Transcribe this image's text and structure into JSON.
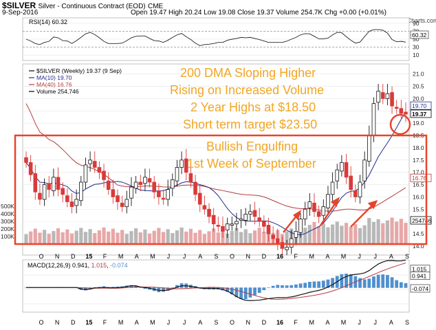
{
  "header": {
    "symbol": "$SILVER",
    "name": "Silver - Continuous Contract (EOD)",
    "exchange": "CME",
    "date": "9-Sep-2016",
    "ohlc": "Open 19.47  High 20.24  Low 19.08  Close 19.37  Volume 254.7K  Chg +0.00 (+0.01%)",
    "watermark": "© StockCharts.com"
  },
  "rsi_panel": {
    "label": "RSI(14) 60.32",
    "ticks": [
      "90",
      "70",
      "50",
      "30",
      "10"
    ],
    "current_label": "60.32"
  },
  "price_panel": {
    "legend": [
      {
        "text": "$SILVER (Weekly) 19.37 (9 Sep)",
        "color": "#000000"
      },
      {
        "text": "MA(10) 19.70",
        "color": "#1f2a8c"
      },
      {
        "text": "MA(40) 16.76",
        "color": "#b53a3a"
      },
      {
        "text": "Volume 254,746",
        "color": "#000000"
      }
    ],
    "price_ticks": [
      "21.0",
      "20.5",
      "20.0",
      "19.5",
      "19.0",
      "18.5",
      "18.0",
      "17.5",
      "17.0",
      "16.5",
      "16.0",
      "15.5",
      "15.0",
      "14.5",
      "14.0"
    ],
    "price_tags": [
      {
        "text": "19.70",
        "bg": "#ffffff",
        "fg": "#1f2a8c"
      },
      {
        "text": "19.37",
        "bg": "#ffffff",
        "fg": "#000000"
      },
      {
        "text": "16.76",
        "bg": "#ffffff",
        "fg": "#b53a3a"
      },
      {
        "text": "254746",
        "bg": "#ffffff",
        "fg": "#000000"
      }
    ],
    "volume_ticks": [
      "500K",
      "400K",
      "300K",
      "200K",
      "100K"
    ]
  },
  "annotations": [
    "200 DMA Sloping Higher",
    "Rising on Increased Volume",
    "2 Year Highs at $18.50",
    "Short term target $23.50",
    "Bullish Engulfing",
    "1st Week of September"
  ],
  "macd_panel": {
    "label_prefix": "MACD(12,26,9)",
    "macd": "0.941",
    "signal": "1.015",
    "hist": "-0.074",
    "tags": [
      "1.015",
      "0.941",
      "-0.074"
    ]
  },
  "x_axis_labels": [
    "O",
    "N",
    "D",
    "15",
    "F",
    "M",
    "A",
    "M",
    "J",
    "J",
    "A",
    "S",
    "O",
    "N",
    "D",
    "16",
    "F",
    "M",
    "A",
    "M",
    "J",
    "J",
    "A",
    "S"
  ],
  "colors": {
    "up": "#111111",
    "down": "#d93a3a",
    "ma10": "#1f2a8c",
    "ma40": "#b53a3a",
    "annotation": "#f2a623",
    "highlight": "#e8442b",
    "volume_up": "#b8b8b8",
    "volume_down": "#e8a7a7",
    "macd_hist": "#4f8fce"
  },
  "chart_data": [
    {
      "type": "candlestick",
      "title": "$SILVER (Weekly)",
      "x_unit": "week",
      "x_range": [
        "2014-10",
        "2016-09"
      ],
      "ylim": [
        13.8,
        21.3
      ],
      "series": [
        {
          "name": "$SILVER (Weekly)",
          "close_path_approx": [
            17.4,
            16.9,
            16.2,
            15.9,
            16.5,
            16.3,
            16.8,
            16.3,
            16.1,
            15.8,
            15.6,
            15.9,
            16.6,
            17.3,
            17.5,
            17.2,
            17.0,
            16.7,
            16.3,
            16.0,
            15.8,
            15.6,
            15.9,
            16.4,
            16.6,
            16.5,
            16.8,
            16.6,
            16.2,
            16.0,
            15.9,
            16.3,
            16.7,
            17.2,
            17.5,
            17.0,
            16.6,
            16.1,
            15.7,
            15.5,
            15.2,
            14.9,
            14.8,
            14.6,
            14.9,
            14.9,
            15.0,
            15.1,
            15.3,
            15.4,
            15.2,
            15.0,
            14.8,
            14.5,
            14.3,
            14.1,
            13.9,
            13.95,
            14.3,
            14.6,
            15.1,
            15.5,
            15.8,
            15.4,
            15.2,
            15.6,
            16.1,
            16.6,
            17.1,
            17.4,
            16.8,
            16.3,
            16.0,
            16.6,
            17.5,
            18.5,
            19.8,
            20.3,
            20.0,
            20.2,
            19.7,
            19.6,
            19.4,
            19.37
          ]
        },
        {
          "name": "MA(10)",
          "last": 19.7
        },
        {
          "name": "MA(40)",
          "last": 16.76
        }
      ],
      "volume_last": 254746
    },
    {
      "type": "line",
      "title": "RSI(14)",
      "ylim": [
        0,
        100
      ],
      "series": [
        {
          "name": "RSI(14)",
          "last": 60.32
        }
      ]
    },
    {
      "type": "line",
      "title": "MACD(12,26,9)",
      "series": [
        {
          "name": "MACD",
          "last": 0.941
        },
        {
          "name": "Signal",
          "last": 1.015
        },
        {
          "name": "Histogram",
          "last": -0.074
        }
      ]
    }
  ]
}
